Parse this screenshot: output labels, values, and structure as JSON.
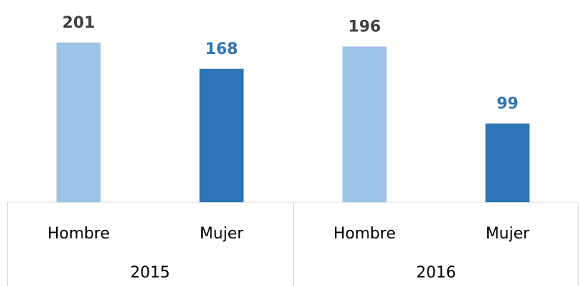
{
  "chart_data": {
    "type": "bar",
    "categories": [
      "2015",
      "2016"
    ],
    "series": [
      {
        "name": "Hombre",
        "color": "#9dc3e6",
        "label_color": "#404040",
        "values": [
          201,
          196
        ]
      },
      {
        "name": "Mujer",
        "color": "#2e75b6",
        "label_color": "#2e75b6",
        "values": [
          168,
          99
        ]
      }
    ]
  }
}
